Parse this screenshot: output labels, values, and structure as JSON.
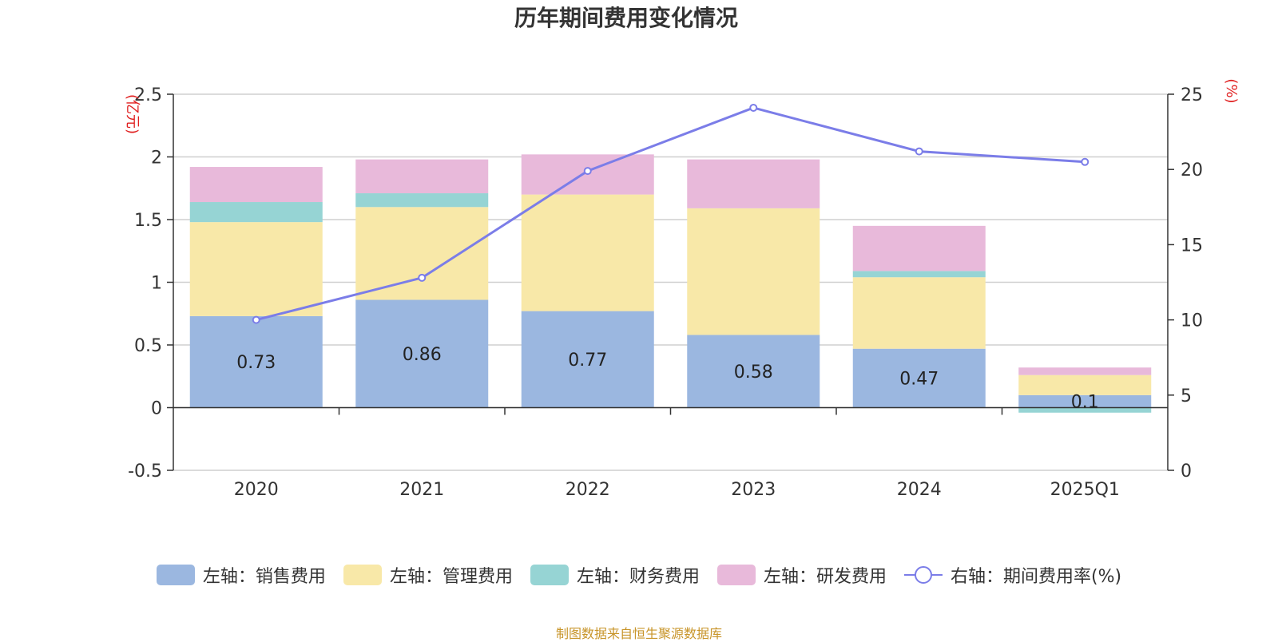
{
  "chart_data": {
    "type": "bar",
    "title": "历年期间费用变化情况",
    "categories": [
      "2020",
      "2021",
      "2022",
      "2023",
      "2024",
      "2025Q1"
    ],
    "ylabel_left": "(亿元)",
    "ylabel_right": "(%)",
    "ylim_left": [
      -0.5,
      2.5
    ],
    "yticks_left": [
      -0.5,
      0,
      0.5,
      1,
      1.5,
      2,
      2.5
    ],
    "yticks_left_labels": [
      "-0.5",
      "0",
      "0.5",
      "1",
      "1.5",
      "2",
      "2.5"
    ],
    "ylim_right": [
      0,
      25
    ],
    "yticks_right": [
      0,
      5,
      10,
      15,
      20,
      25
    ],
    "yticks_right_labels": [
      "0",
      "5",
      "10",
      "15",
      "20",
      "25"
    ],
    "series": [
      {
        "name": "左轴：销售费用",
        "axis": "left",
        "stack": true,
        "color": "#9bb7e0",
        "values": [
          0.73,
          0.86,
          0.77,
          0.58,
          0.47,
          0.1
        ],
        "labels": [
          "0.73",
          "0.86",
          "0.77",
          "0.58",
          "0.47",
          "0.1"
        ]
      },
      {
        "name": "左轴：管理费用",
        "axis": "left",
        "stack": true,
        "color": "#f8e8a8",
        "values": [
          0.75,
          0.74,
          0.93,
          1.01,
          0.57,
          0.16
        ]
      },
      {
        "name": "左轴：财务费用",
        "axis": "left",
        "stack": true,
        "color": "#96d4d4",
        "values": [
          0.16,
          0.11,
          0.0,
          0.0,
          0.05,
          -0.04
        ]
      },
      {
        "name": "左轴：研发费用",
        "axis": "left",
        "stack": true,
        "color": "#e8b9da",
        "values": [
          0.28,
          0.27,
          0.32,
          0.39,
          0.36,
          0.06
        ]
      },
      {
        "name": "右轴：期间费用率(%)",
        "axis": "right",
        "type": "line",
        "color": "#7b7de8",
        "values": [
          10.0,
          12.8,
          19.9,
          24.1,
          21.2,
          20.5
        ]
      }
    ]
  },
  "source": "制图数据来自恒生聚源数据库"
}
